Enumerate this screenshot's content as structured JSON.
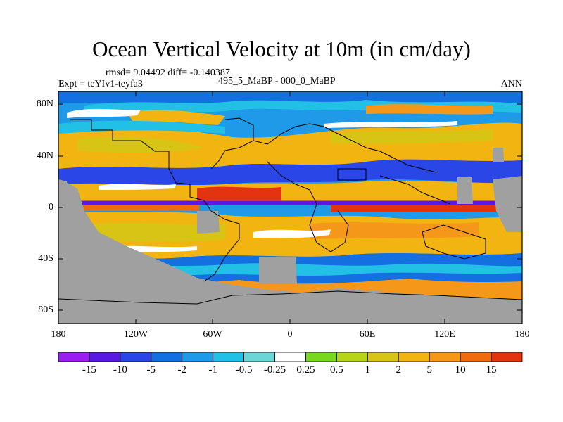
{
  "title": "Ocean Vertical Velocity at 10m (in cm/day)",
  "stats": "rmsd= 9.04492 diff= -0.140387",
  "experiment": "Expt = teYIv1-teyfa3",
  "comparison": "495_5_MaBP - 000_0_MaBP",
  "season": "ANN",
  "map": {
    "lat_labels": [
      "80N",
      "40N",
      "0",
      "40S",
      "80S"
    ],
    "lon_labels": [
      "180",
      "120W",
      "60W",
      "0",
      "60E",
      "120E",
      "180"
    ]
  },
  "colorbar": {
    "colors": [
      "#9a1ef0",
      "#5a19e0",
      "#2a46e6",
      "#1470e0",
      "#1f9ae8",
      "#23c0e6",
      "#6ad6d8",
      "#ffffff",
      "#78d820",
      "#b8d418",
      "#d8c414",
      "#f2b411",
      "#f5981a",
      "#f06a10",
      "#e2340e"
    ],
    "labels": [
      "-15",
      "-10",
      "-5",
      "-2",
      "-1",
      "-0.5",
      "-0.25",
      "0.25",
      "0.5",
      "1",
      "2",
      "5",
      "10",
      "15"
    ]
  },
  "colors": {
    "land": "#a0a0a0",
    "coast": "#000000"
  }
}
